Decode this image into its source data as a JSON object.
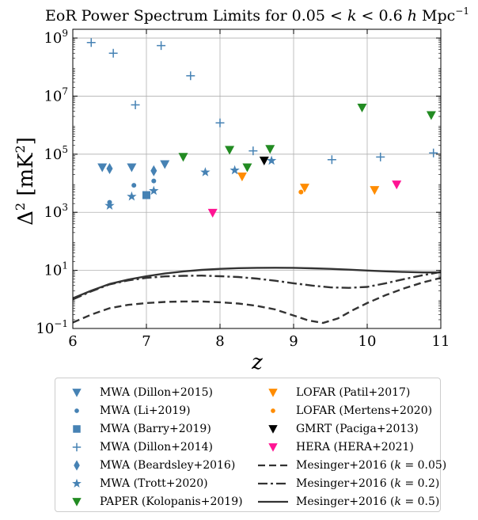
{
  "chart_data": {
    "type": "scatter",
    "title": "EoR Power Spectrum Limits for 0.05 < k < 0.6 h Mpc⁻¹",
    "title_parts": {
      "prefix": "EoR Power Spectrum Limits for 0.05 < ",
      "k": "k",
      "mid": " < 0.6 ",
      "h": "h",
      "unit": " Mpc",
      "exp": "−1"
    },
    "xlabel": "z",
    "ylabel": "Δ² [mK²]",
    "ylabel_parts": {
      "delta": "Δ",
      "sq": "2",
      "unit": " [mK",
      "unit_sq": "2",
      "close": "]"
    },
    "xlim": [
      6,
      11
    ],
    "ylim": [
      0.1,
      2000000000.0
    ],
    "yscale": "log",
    "grid": true,
    "legend_placement": "below",
    "x_ticks": [
      "6",
      "7",
      "8",
      "9",
      "10",
      "11"
    ],
    "y_ticks": [
      {
        "base": "10",
        "exp": "−1",
        "value": 0.1
      },
      {
        "base": "10",
        "exp": "1",
        "value": 10
      },
      {
        "base": "10",
        "exp": "3",
        "value": 1000
      },
      {
        "base": "10",
        "exp": "5",
        "value": 100000
      },
      {
        "base": "10",
        "exp": "7",
        "value": 10000000
      },
      {
        "base": "10",
        "exp": "9",
        "value": 1000000000
      }
    ],
    "series": [
      {
        "name": "MWA (Dillon+2015)",
        "marker": "triangle-down",
        "color": "#4682b4",
        "points": [
          [
            6.4,
            35000
          ],
          [
            6.8,
            35000
          ],
          [
            7.25,
            45000
          ]
        ]
      },
      {
        "name": "MWA (Li+2019)",
        "marker": "dot",
        "color": "#4682b4",
        "points": [
          [
            6.5,
            2200
          ],
          [
            6.83,
            8500
          ],
          [
            7.1,
            12000
          ]
        ]
      },
      {
        "name": "MWA (Barry+2019)",
        "marker": "square",
        "color": "#4682b4",
        "points": [
          [
            7.0,
            3900
          ]
        ]
      },
      {
        "name": "MWA (Dillon+2014)",
        "marker": "plus",
        "color": "#4682b4",
        "points": [
          [
            6.25,
            700000000
          ],
          [
            6.55,
            300000000
          ],
          [
            6.85,
            5000000
          ],
          [
            7.2,
            550000000
          ],
          [
            7.6,
            50000000
          ],
          [
            8.0,
            1200000
          ],
          [
            8.45,
            130000
          ],
          [
            9.52,
            65000
          ],
          [
            10.18,
            80000
          ],
          [
            10.9,
            110000
          ]
        ]
      },
      {
        "name": "MWA (Beardsley+2016)",
        "marker": "thin-diamond",
        "color": "#4682b4",
        "points": [
          [
            6.5,
            32000
          ],
          [
            7.1,
            27000
          ]
        ]
      },
      {
        "name": "MWA (Trott+2020)",
        "marker": "star",
        "color": "#4682b4",
        "points": [
          [
            6.5,
            1700
          ],
          [
            6.8,
            3500
          ],
          [
            7.1,
            5500
          ],
          [
            7.8,
            24000
          ],
          [
            8.2,
            28000
          ],
          [
            8.7,
            60000
          ]
        ]
      },
      {
        "name": "PAPER (Kolopanis+2019)",
        "marker": "triangle-down",
        "color": "#228b22",
        "points": [
          [
            7.5,
            80000
          ],
          [
            8.13,
            140000
          ],
          [
            8.37,
            35000
          ],
          [
            8.68,
            150000
          ],
          [
            9.93,
            4000000
          ],
          [
            10.87,
            2200000
          ]
        ]
      },
      {
        "name": "LOFAR (Patil+2017)",
        "marker": "triangle-down",
        "color": "#ff8c00",
        "points": [
          [
            8.3,
            17000
          ],
          [
            9.15,
            7000
          ],
          [
            10.1,
            5800
          ]
        ]
      },
      {
        "name": "LOFAR (Mertens+2020)",
        "marker": "dot",
        "color": "#ff8c00",
        "points": [
          [
            9.1,
            5000
          ]
        ]
      },
      {
        "name": "GMRT (Paciga+2013)",
        "marker": "triangle-down",
        "color": "#000000",
        "points": [
          [
            8.6,
            60000
          ]
        ]
      },
      {
        "name": "HERA (HERA+2021)",
        "marker": "triangle-down",
        "color": "#ff1493",
        "points": [
          [
            7.9,
            950
          ],
          [
            10.4,
            9000
          ]
        ]
      }
    ],
    "models": [
      {
        "name": "Mesinger+2016 (k = 0.05)",
        "name_parts": {
          "pre": "Mesinger+2016 (",
          "k": "k",
          "post": " = 0.05)"
        },
        "style": "dashed",
        "color": "#333333",
        "x": [
          6.0,
          6.25,
          6.5,
          6.75,
          7.0,
          7.25,
          7.5,
          7.75,
          8.0,
          8.25,
          8.5,
          8.75,
          9.0,
          9.2,
          9.4,
          9.6,
          9.8,
          10.0,
          10.25,
          10.5,
          10.75,
          11.0
        ],
        "y": [
          0.16,
          0.3,
          0.5,
          0.65,
          0.75,
          0.82,
          0.85,
          0.85,
          0.8,
          0.72,
          0.6,
          0.45,
          0.28,
          0.19,
          0.155,
          0.22,
          0.42,
          0.75,
          1.4,
          2.4,
          3.8,
          5.5
        ]
      },
      {
        "name": "Mesinger+2016 (k = 0.2)",
        "name_parts": {
          "pre": "Mesinger+2016 (",
          "k": "k",
          "post": " = 0.2)"
        },
        "style": "dashdot",
        "color": "#333333",
        "x": [
          6.0,
          6.25,
          6.5,
          6.75,
          7.0,
          7.25,
          7.5,
          7.75,
          8.0,
          8.25,
          8.5,
          8.75,
          9.0,
          9.25,
          9.5,
          9.75,
          10.0,
          10.25,
          10.5,
          10.75,
          11.0
        ],
        "y": [
          1.0,
          1.9,
          3.3,
          4.5,
          5.5,
          6.2,
          6.5,
          6.6,
          6.3,
          5.9,
          5.2,
          4.4,
          3.6,
          3.0,
          2.6,
          2.5,
          2.7,
          3.6,
          5.0,
          6.8,
          8.8
        ]
      },
      {
        "name": "Mesinger+2016 (k = 0.5)",
        "name_parts": {
          "pre": "Mesinger+2016 (",
          "k": "k",
          "post": " = 0.5)"
        },
        "style": "solid",
        "color": "#333333",
        "x": [
          6.0,
          6.25,
          6.5,
          6.75,
          7.0,
          7.25,
          7.5,
          7.75,
          8.0,
          8.25,
          8.5,
          8.75,
          9.0,
          9.25,
          9.5,
          9.75,
          10.0,
          10.25,
          10.5,
          10.75,
          11.0
        ],
        "y": [
          1.1,
          2.0,
          3.4,
          4.8,
          6.3,
          7.8,
          9.2,
          10.4,
          11.3,
          11.9,
          12.2,
          12.3,
          12.2,
          11.8,
          11.3,
          10.6,
          9.9,
          9.3,
          8.8,
          8.5,
          8.5
        ]
      }
    ]
  }
}
